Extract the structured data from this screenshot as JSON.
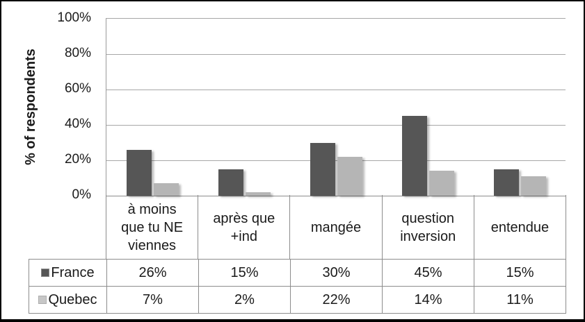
{
  "chart_data": {
    "type": "bar",
    "title": "",
    "ylabel": "% of respondents",
    "ylim": [
      0,
      100
    ],
    "grid": true,
    "legend_position": "table-below-chart-left",
    "yticks": [
      {
        "value": 100,
        "label": "100%"
      },
      {
        "value": 80,
        "label": "80%"
      },
      {
        "value": 60,
        "label": "60%"
      },
      {
        "value": 40,
        "label": "40%"
      },
      {
        "value": 20,
        "label": "20%"
      },
      {
        "value": 0,
        "label": "0%"
      }
    ],
    "categories": [
      "à moins que tu NE viennes",
      "après que +ind",
      "mangée",
      "question inversion",
      "entendue"
    ],
    "category_label_lines": [
      [
        "à moins",
        "que tu NE",
        "viennes"
      ],
      [
        "après que",
        "+ind"
      ],
      [
        "mangée"
      ],
      [
        "question",
        "inversion"
      ],
      [
        "entendue"
      ]
    ],
    "series": [
      {
        "name": "France",
        "color": "#565656",
        "swatch_border": "#8a8a8a",
        "values": [
          26,
          15,
          30,
          45,
          15
        ],
        "value_labels": [
          "26%",
          "15%",
          "30%",
          "45%",
          "15%"
        ]
      },
      {
        "name": "Quebec",
        "color": "#b5b5b5",
        "swatch_fill": "#c7c7c7",
        "swatch_border": "#aeaeae",
        "values": [
          7,
          2,
          22,
          14,
          11
        ],
        "value_labels": [
          "7%",
          "2%",
          "22%",
          "14%",
          "11%"
        ]
      }
    ]
  },
  "colors": {
    "grid_line": "#a6a6a6",
    "axis_line": "#8c8c8c",
    "table_border": "#8c8c8c",
    "frame_border": "#000000",
    "background": "#ffffff",
    "text": "#1a1a1a"
  }
}
